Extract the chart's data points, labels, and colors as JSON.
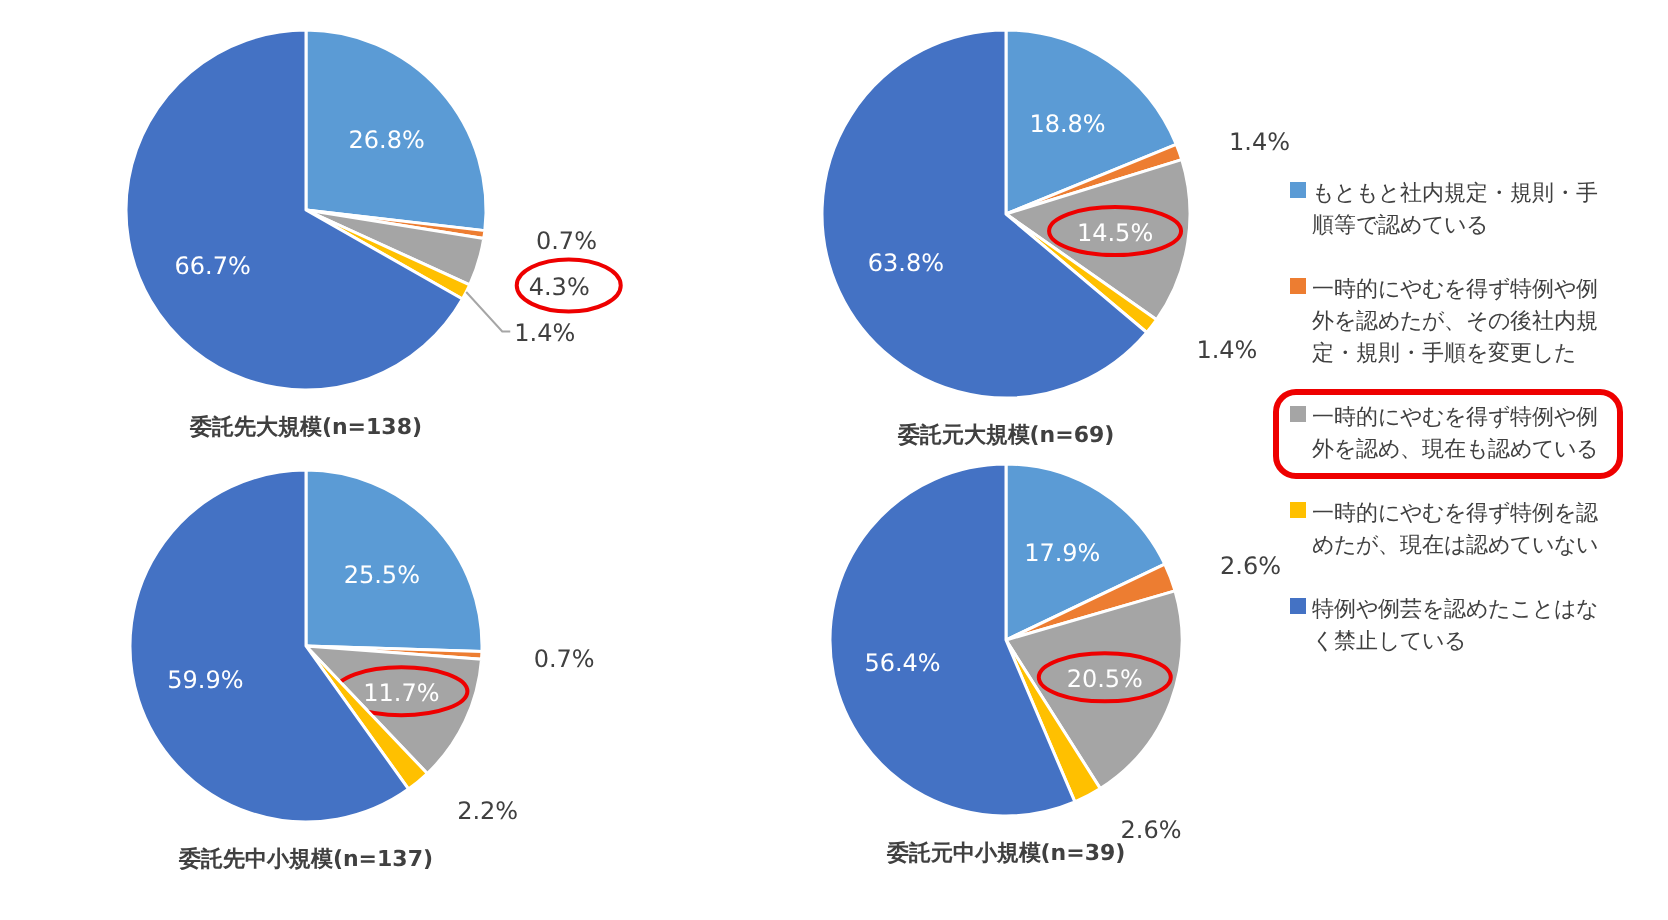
{
  "chart_data": [
    {
      "type": "pie",
      "title": "委託先大規模(n=138)",
      "categories": [
        "もともと社内規定・規則・手順等で認めている",
        "一時的にやむを得ず特例や例外を認めたが、その後社内規定・規則・手順を変更した",
        "一時的にやむを得ず特例や例外を認め、現在も認めている",
        "一時的にやむを得ず特例を認めたが、現在は認めていない",
        "特例や例芸を認めたことはなく禁止している"
      ],
      "values": [
        26.8,
        0.7,
        4.3,
        1.4,
        66.7
      ],
      "value_labels": [
        "26.8%",
        "0.7%",
        "4.3%",
        "1.4%",
        "66.7%"
      ],
      "colors": [
        "#5b9bd5",
        "#ed7d31",
        "#a5a5a5",
        "#ffc000",
        "#4472c4"
      ],
      "legend": "right"
    },
    {
      "type": "pie",
      "title": "委託元大規模(n=69)",
      "values": [
        18.8,
        1.4,
        14.5,
        1.4,
        63.8
      ],
      "value_labels": [
        "18.8%",
        "1.4%",
        "14.5%",
        "1.4%",
        "63.8%"
      ],
      "colors": [
        "#5b9bd5",
        "#ed7d31",
        "#a5a5a5",
        "#ffc000",
        "#4472c4"
      ]
    },
    {
      "type": "pie",
      "title": "委託先中小規模(n=137)",
      "values": [
        25.5,
        0.7,
        11.7,
        2.2,
        59.9
      ],
      "value_labels": [
        "25.5%",
        "0.7%",
        "11.7%",
        "2.2%",
        "59.9%"
      ],
      "colors": [
        "#5b9bd5",
        "#ed7d31",
        "#a5a5a5",
        "#ffc000",
        "#4472c4"
      ]
    },
    {
      "type": "pie",
      "title": "委託元中小規模(n=39)",
      "values": [
        17.9,
        2.6,
        20.5,
        2.6,
        56.4
      ],
      "value_labels": [
        "17.9%",
        "2.6%",
        "20.5%",
        "2.6%",
        "56.4%"
      ],
      "colors": [
        "#5b9bd5",
        "#ed7d31",
        "#a5a5a5",
        "#ffc000",
        "#4472c4"
      ]
    }
  ]
}
